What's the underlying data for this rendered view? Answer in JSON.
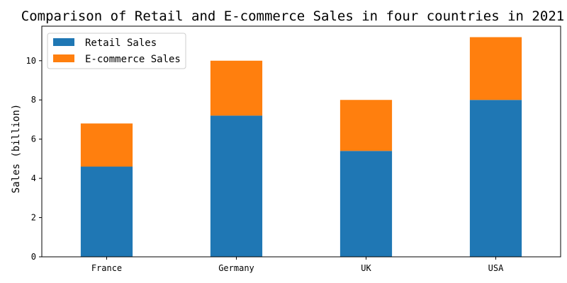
{
  "chart_data": {
    "type": "bar",
    "stacked": true,
    "title": "Comparison of Retail and E-commerce Sales in four countries in 2021",
    "xlabel": "",
    "ylabel": "Sales (billion)",
    "categories": [
      "France",
      "Germany",
      "UK",
      "USA"
    ],
    "series": [
      {
        "name": "Retail Sales",
        "color": "#1f77b4",
        "values": [
          4.6,
          7.2,
          5.4,
          8.0
        ]
      },
      {
        "name": "E-commerce Sales",
        "color": "#ff7f0e",
        "values": [
          2.2,
          2.8,
          2.6,
          3.2
        ]
      }
    ],
    "ylim": [
      0,
      11.76
    ],
    "yticks": [
      0,
      2,
      4,
      6,
      8,
      10
    ],
    "grid": false,
    "legend_position": "top-left"
  }
}
